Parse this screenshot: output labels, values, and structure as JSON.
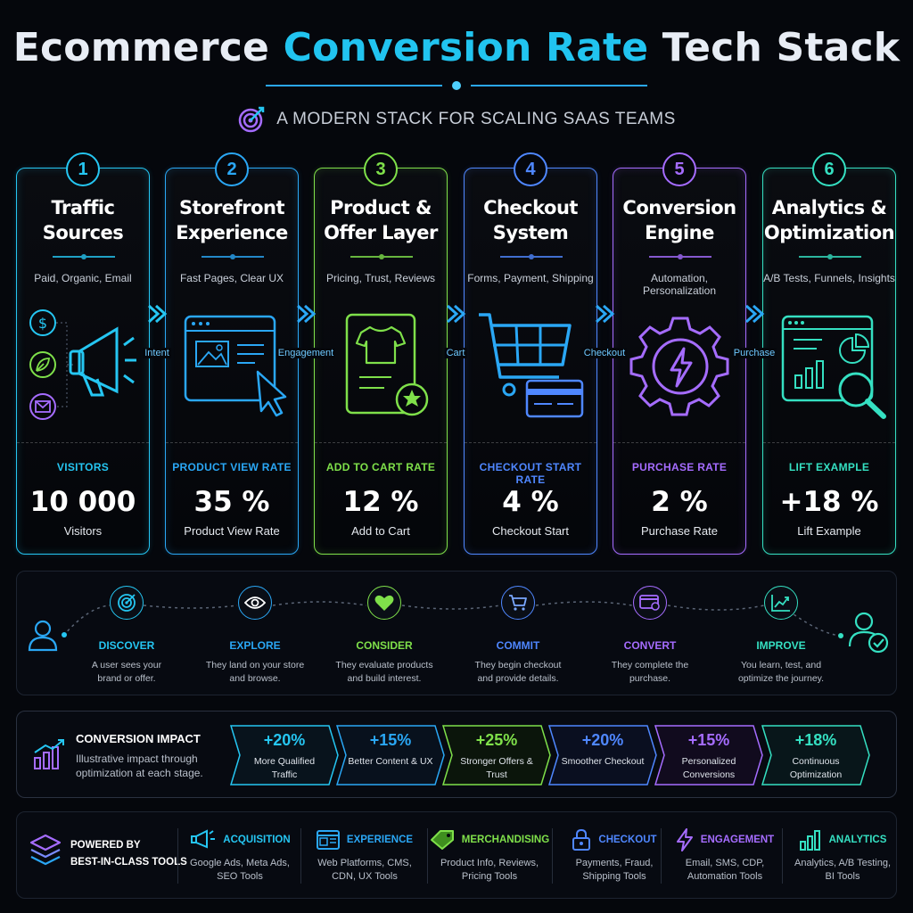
{
  "header": {
    "title_part1": "Ecommerce ",
    "title_highlight": "Conversion Rate",
    "title_part2": " Tech Stack",
    "subtitle": "A MODERN STACK FOR SCALING SAAS TEAMS"
  },
  "colors": {
    "cyan": "#25c6f2",
    "sky": "#2aa7f5",
    "green": "#7fe04a",
    "blue": "#4f87ff",
    "purple": "#a56cff",
    "teal": "#35e0c2"
  },
  "stages": [
    {
      "num": "1",
      "title_line1": "Traffic",
      "title_line2": "Sources",
      "desc": "Paid, Organic, Email",
      "metric_label": "VISITORS",
      "metric_value": "10 000",
      "metric_sub": "Visitors",
      "icon": "megaphone-icon"
    },
    {
      "num": "2",
      "title_line1": "Storefront",
      "title_line2": "Experience",
      "desc": "Fast Pages, Clear UX",
      "metric_label": "PRODUCT VIEW RATE",
      "metric_value": "35 %",
      "metric_sub": "Product View Rate",
      "icon": "browser-window-icon"
    },
    {
      "num": "3",
      "title_line1": "Product &",
      "title_line2": "Offer Layer",
      "desc": "Pricing, Trust, Reviews",
      "metric_label": "ADD TO CART RATE",
      "metric_value": "12 %",
      "metric_sub": "Add to Cart",
      "icon": "tshirt-card-icon"
    },
    {
      "num": "4",
      "title_line1": "Checkout",
      "title_line2": "System",
      "desc": "Forms, Payment, Shipping",
      "metric_label": "CHECKOUT START RATE",
      "metric_value": "4 %",
      "metric_sub": "Checkout Start",
      "icon": "shopping-cart-icon"
    },
    {
      "num": "5",
      "title_line1": "Conversion",
      "title_line2": "Engine",
      "desc": "Automation, Personalization",
      "metric_label": "PURCHASE RATE",
      "metric_value": "2 %",
      "metric_sub": "Purchase Rate",
      "icon": "gear-bolt-icon"
    },
    {
      "num": "6",
      "title_line1": "Analytics &",
      "title_line2": "Optimization",
      "desc": "A/B Tests, Funnels, Insights",
      "metric_label": "LIFT EXAMPLE",
      "metric_value": "+18 %",
      "metric_sub": "Lift Example",
      "icon": "analytics-magnifier-icon"
    }
  ],
  "connectors": [
    "Intent",
    "Engagement",
    "Cart",
    "Checkout",
    "Purchase"
  ],
  "journey": [
    {
      "title": "DISCOVER",
      "desc_line1": "A user sees your",
      "desc_line2": "brand or offer.",
      "icon": "target-icon"
    },
    {
      "title": "EXPLORE",
      "desc_line1": "They land on your store",
      "desc_line2": "and browse.",
      "icon": "eye-icon"
    },
    {
      "title": "CONSIDER",
      "desc_line1": "They evaluate products",
      "desc_line2": "and build interest.",
      "icon": "heart-icon"
    },
    {
      "title": "COMMIT",
      "desc_line1": "They begin checkout",
      "desc_line2": "and provide details.",
      "icon": "cart-icon"
    },
    {
      "title": "CONVERT",
      "desc_line1": "They complete the",
      "desc_line2": "purchase.",
      "icon": "card-check-icon"
    },
    {
      "title": "IMPROVE",
      "desc_line1": "You learn, test, and",
      "desc_line2": "optimize the journey.",
      "icon": "trend-chart-icon"
    }
  ],
  "impact": {
    "title": "CONVERSION IMPACT",
    "desc": "Illustrative impact through optimization at each stage.",
    "chips": [
      {
        "value": "+20%",
        "label": "More Qualified Traffic"
      },
      {
        "value": "+15%",
        "label": "Better Content & UX"
      },
      {
        "value": "+25%",
        "label": "Stronger Offers & Trust"
      },
      {
        "value": "+20%",
        "label": "Smoother Checkout"
      },
      {
        "value": "+15%",
        "label": "Personalized Conversions"
      },
      {
        "value": "+18%",
        "label": "Continuous Optimization"
      }
    ]
  },
  "tools": {
    "head_line1": "POWERED BY",
    "head_line2": "BEST-IN-CLASS TOOLS",
    "items": [
      {
        "name": "ACQUISITION",
        "desc_line1": "Google Ads, Meta Ads,",
        "desc_line2": "SEO Tools",
        "icon": "megaphone-icon"
      },
      {
        "name": "EXPERIENCE",
        "desc_line1": "Web Platforms, CMS,",
        "desc_line2": "CDN, UX Tools",
        "icon": "browser-icon"
      },
      {
        "name": "MERCHANDISING",
        "desc_line1": "Product Info, Reviews,",
        "desc_line2": "Pricing Tools",
        "icon": "tag-icon"
      },
      {
        "name": "CHECKOUT",
        "desc_line1": "Payments, Fraud,",
        "desc_line2": "Shipping Tools",
        "icon": "lock-icon"
      },
      {
        "name": "ENGAGEMENT",
        "desc_line1": "Email, SMS, CDP,",
        "desc_line2": "Automation Tools",
        "icon": "bolt-icon"
      },
      {
        "name": "ANALYTICS",
        "desc_line1": "Analytics, A/B Testing,",
        "desc_line2": "BI Tools",
        "icon": "bar-chart-icon"
      }
    ]
  }
}
